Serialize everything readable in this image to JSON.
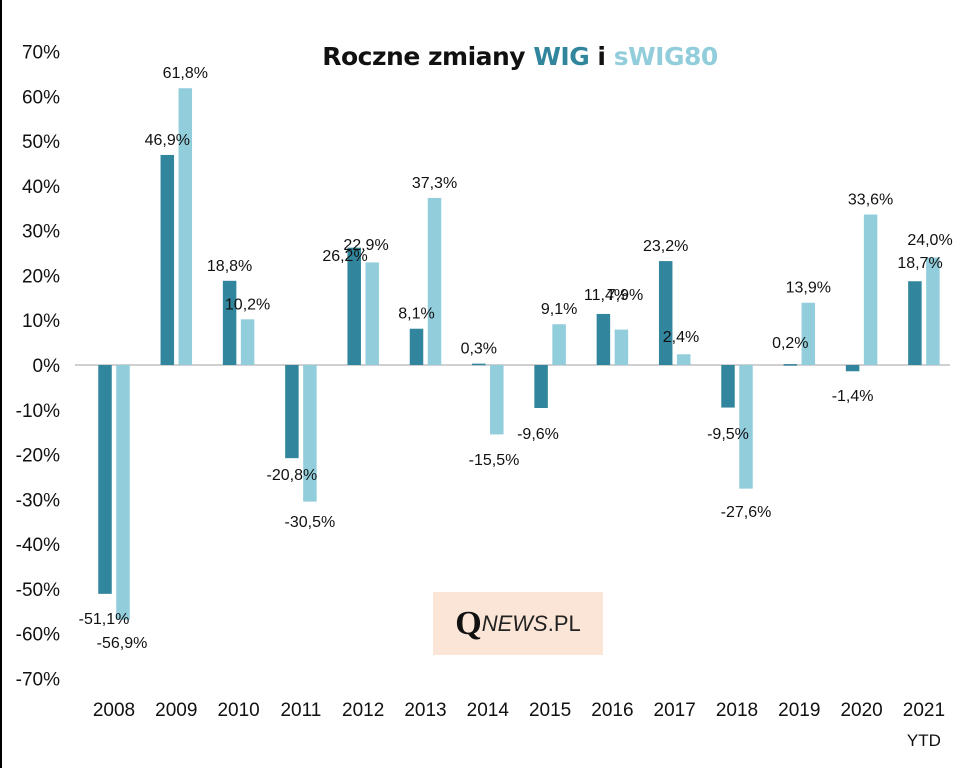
{
  "chart_data": {
    "type": "bar",
    "title": "Roczne zmiany WIG i sWIG80",
    "title_parts": {
      "prefix": "Roczne zmiany ",
      "wig": "WIG",
      "joiner": " i ",
      "swig": "sWIG80"
    },
    "categories": [
      "2008",
      "2009",
      "2010",
      "2011",
      "2012",
      "2013",
      "2014",
      "2015",
      "2016",
      "2017",
      "2018",
      "2019",
      "2020",
      "2021"
    ],
    "category_sublabels": {
      "2021": "YTD"
    },
    "series": [
      {
        "name": "WIG",
        "color": "#31859c",
        "values": [
          -51.1,
          46.9,
          18.8,
          -20.8,
          26.2,
          8.1,
          0.3,
          -9.6,
          11.4,
          23.2,
          -9.5,
          0.2,
          -1.4,
          18.7
        ],
        "labels": [
          "-51,1%",
          "46,9%",
          "18,8%",
          "-20,8%",
          "26,2%",
          "8,1%",
          "0,3%",
          "-9,6%",
          "11,4%",
          "23,2%",
          "-9,5%",
          "0,2%",
          "-1,4%",
          "18,7%"
        ]
      },
      {
        "name": "sWIG80",
        "color": "#92cddc",
        "values": [
          -56.9,
          61.8,
          10.2,
          -30.5,
          22.9,
          37.3,
          -15.5,
          9.1,
          7.9,
          2.4,
          -27.6,
          13.9,
          33.6,
          24.0
        ],
        "labels": [
          "-56,9%",
          "61,8%",
          "10,2%",
          "-30,5%",
          "22,9%",
          "37,3%",
          "-15,5%",
          "9,1%",
          "7,9%",
          "2,4%",
          "-27,6%",
          "13,9%",
          "33,6%",
          "24,0%"
        ]
      }
    ],
    "ylim": [
      -70,
      70
    ],
    "yticks": [
      "70%",
      "60%",
      "50%",
      "40%",
      "30%",
      "20%",
      "10%",
      "0%",
      "-10%",
      "-20%",
      "-30%",
      "-40%",
      "-50%",
      "-60%",
      "-70%"
    ],
    "ytick_values": [
      70,
      60,
      50,
      40,
      30,
      20,
      10,
      0,
      -10,
      -20,
      -30,
      -40,
      -50,
      -60,
      -70
    ],
    "xlabel": "",
    "ylabel": "",
    "grid": false,
    "legend": "none (title color-coded)"
  },
  "watermark": {
    "q": "Q",
    "news": "NEWS",
    "pl": ".PL"
  }
}
